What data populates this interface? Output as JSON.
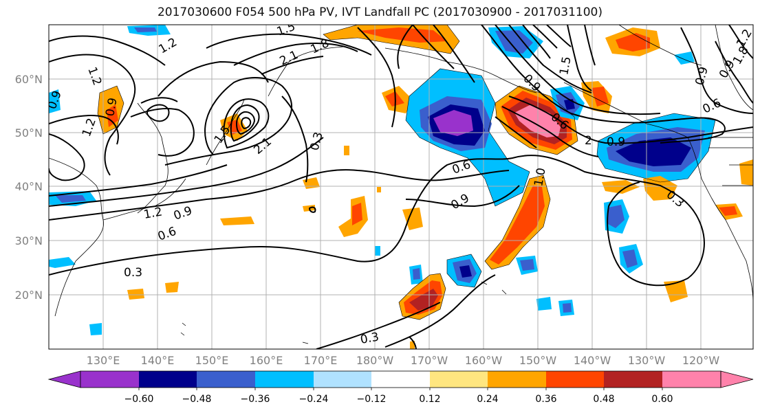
{
  "title": "2017030600 F054 500 hPa PV, IVT Landfall PC (2017030900 - 2017031100)",
  "map": {
    "lat_labels": [
      "60°N",
      "50°N",
      "40°N",
      "30°N",
      "20°N"
    ],
    "lon_labels": [
      "130°E",
      "140°E",
      "150°E",
      "160°E",
      "170°E",
      "180°W",
      "170°W",
      "160°W",
      "150°W",
      "140°W",
      "130°W",
      "120°W"
    ],
    "contour_labels": [
      "1.2",
      "0.9",
      "0.9",
      "1.5",
      "2.1",
      "1.8",
      "1.5",
      "0.9",
      "1.5",
      "2.1",
      "0.3",
      "1.2",
      "1.2",
      "0.9",
      "0.6",
      "0.3",
      "0.6",
      "0.9",
      "1.0",
      "0.6",
      "0.9",
      "2",
      "0.3",
      "0.9",
      "0.6",
      "0.3",
      "1.2",
      "1.8",
      "0.9",
      "1.2"
    ]
  },
  "colorbar": {
    "ticks": [
      "−0.60",
      "−0.48",
      "−0.36",
      "−0.24",
      "−0.12",
      "0.12",
      "0.24",
      "0.36",
      "0.48",
      "0.60"
    ],
    "colors": [
      "#9932cc",
      "#00008b",
      "#3a5fcd",
      "#00bfff",
      "#b0e2ff",
      "#ffffff",
      "#ffe680",
      "#ffa500",
      "#ff4500",
      "#b22222",
      "#ff82ab",
      "#ff82ab"
    ]
  },
  "colors": {
    "grid": "#b0b0b0",
    "contour": "#000000",
    "label": "#808080"
  }
}
